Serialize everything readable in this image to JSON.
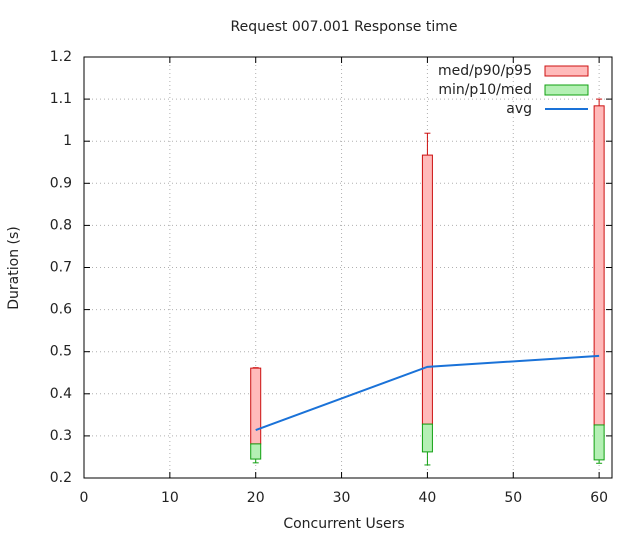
{
  "chart_data": {
    "type": "candlestick",
    "title": "Request 007.001 Response time",
    "x_label": "Concurrent Users",
    "y_label": "Duration (s)",
    "x": [
      20,
      40,
      60
    ],
    "xlim": [
      0,
      61.5
    ],
    "xticks": [
      0,
      10,
      20,
      30,
      40,
      50,
      60
    ],
    "ylim": [
      0.2,
      1.2
    ],
    "yticks": [
      0.2,
      0.3,
      0.4,
      0.5,
      0.6,
      0.7,
      0.8,
      0.9,
      1,
      1.1,
      1.2
    ],
    "grid": true,
    "legend": "top-right",
    "series": [
      {
        "name": "med/p90/p95",
        "type": "box",
        "color": "#ffbaba",
        "edge_color": "#cc1010",
        "box_low": [
          0.281,
          0.328,
          0.326
        ],
        "box_high": [
          0.461,
          0.967,
          1.084
        ],
        "whisker_high": [
          0.462,
          1.019,
          1.1
        ]
      },
      {
        "name": "min/p10/med",
        "type": "box",
        "color": "#b4f0b4",
        "edge_color": "#10a010",
        "whisker_low": [
          0.236,
          0.231,
          0.235
        ],
        "box_low": [
          0.245,
          0.262,
          0.243
        ],
        "box_high": [
          0.281,
          0.328,
          0.326
        ]
      },
      {
        "name": "avg",
        "type": "line",
        "color": "#1a72d8",
        "values": [
          0.314,
          0.464,
          0.49
        ]
      }
    ]
  }
}
